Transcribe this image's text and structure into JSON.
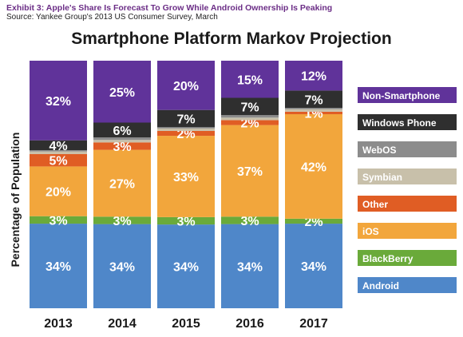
{
  "header": {
    "exhibit": "Exhibit 3: Apple's Share Is Forecast To Grow While Android Ownership Is Peaking",
    "source": "Source: Yankee Group's 2013 US Consumer Survey, March"
  },
  "chart_data": {
    "type": "bar",
    "stacked": true,
    "title": "Smartphone Platform Markov Projection",
    "ylabel": "Percentage of Population",
    "xlabel": "",
    "ylim": [
      0,
      100
    ],
    "grid": false,
    "legend": "right",
    "categories": [
      "2013",
      "2014",
      "2015",
      "2016",
      "2017"
    ],
    "series": [
      {
        "name": "Android",
        "color": "#4f87c9",
        "values": [
          34,
          34,
          34,
          34,
          34
        ],
        "labels": [
          "34%",
          "34%",
          "34%",
          "34%",
          "34%"
        ]
      },
      {
        "name": "BlackBerry",
        "color": "#6aaa3a",
        "values": [
          3,
          3,
          3,
          3,
          2
        ],
        "labels": [
          "3%",
          "3%",
          "3%",
          "3%",
          "2%"
        ]
      },
      {
        "name": "iOS",
        "color": "#f2a63c",
        "values": [
          20,
          27,
          33,
          37,
          42
        ],
        "labels": [
          "20%",
          "27%",
          "33%",
          "37%",
          "42%"
        ]
      },
      {
        "name": "Other",
        "color": "#e05d24",
        "values": [
          5,
          3,
          2,
          2,
          1
        ],
        "labels": [
          "5%",
          "3%",
          "2%",
          "2%",
          "1%"
        ]
      },
      {
        "name": "Symbian",
        "color": "#c8c0aa",
        "values": [
          1,
          1,
          1,
          1,
          1
        ],
        "labels": [
          "",
          "",
          "",
          "",
          ""
        ]
      },
      {
        "name": "WebOS",
        "color": "#8c8c8c",
        "values": [
          0.5,
          1,
          0.5,
          1,
          0.5
        ],
        "labels": [
          "",
          "",
          "",
          "",
          ""
        ]
      },
      {
        "name": "Windows Phone",
        "color": "#2f2f2f",
        "values": [
          4,
          6,
          7,
          7,
          7
        ],
        "labels": [
          "4%",
          "6%",
          "7%",
          "7%",
          "7%"
        ]
      },
      {
        "name": "Non-Smartphone",
        "color": "#60339a",
        "values": [
          32,
          25,
          20,
          15,
          12
        ],
        "labels": [
          "32%",
          "25%",
          "20%",
          "15%",
          "12%"
        ]
      }
    ],
    "legend_order": [
      "Non-Smartphone",
      "Windows Phone",
      "WebOS",
      "Symbian",
      "Other",
      "iOS",
      "BlackBerry",
      "Android"
    ]
  }
}
